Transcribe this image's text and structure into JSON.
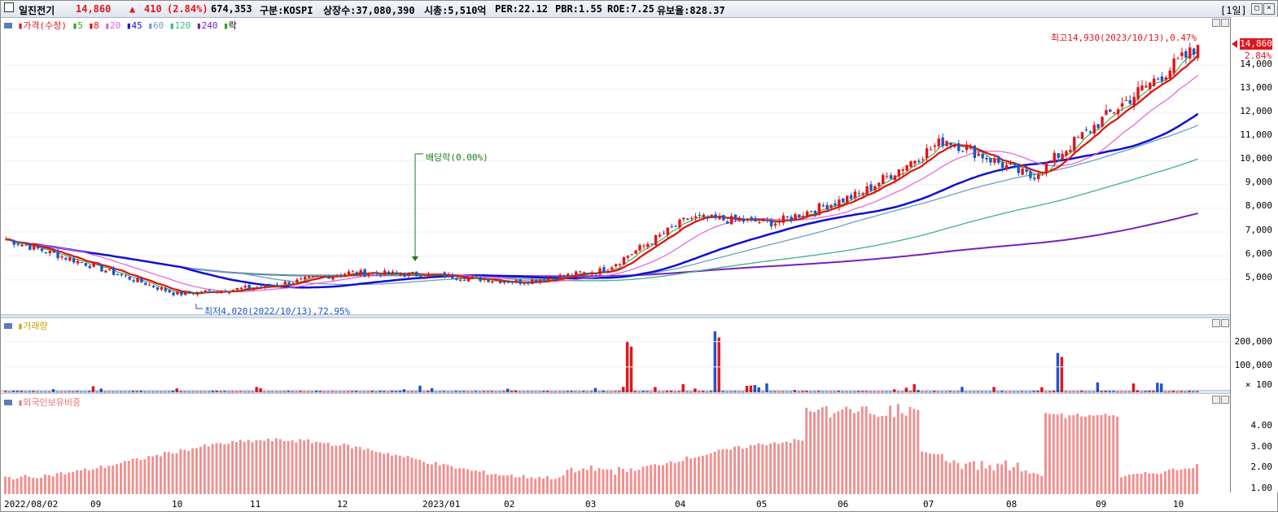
{
  "header": {
    "stock_name": "일진전기",
    "price": "14,860",
    "change_arrow": "▲",
    "change": "410",
    "change_pct": "(2.84%)",
    "volume": "674,353",
    "market": "구분:KOSPI",
    "shares": "상장수:37,080,390",
    "mcap": "시총:5,510억",
    "per": "PER:22.12",
    "pbr": "PBR:1.55",
    "roe": "ROE:7.25",
    "retention": "유보율:828.37",
    "period_button": "[1일]"
  },
  "legend_price": {
    "label": "가격(수정)",
    "ma": [
      "5",
      "8",
      "20",
      "45",
      "60",
      "120",
      "240"
    ],
    "ex_div": "락"
  },
  "annotations": {
    "high": "최고14,930(2023/10/13),0.47%",
    "low": "최저4,020(2022/10/13),72.95%",
    "dividend": "배당락(0.00%)",
    "last_price": "14,860",
    "last_pct": "2.84%"
  },
  "price_axis": [
    "14,000",
    "13,000",
    "12,000",
    "11,000",
    "10,000",
    "9,000",
    "8,000",
    "7,000",
    "6,000",
    "5,000"
  ],
  "volume_panel": {
    "label": "거래량",
    "ticks": [
      "200,000",
      "100,000"
    ],
    "unit": "× 100"
  },
  "foreign_panel": {
    "label": "외국인보유비중",
    "ticks": [
      "4.00",
      "3.00",
      "2.00",
      "1.00"
    ]
  },
  "x_labels": [
    "2022/08/02",
    "09",
    "10",
    "11",
    "12",
    "2023/01",
    "02",
    "03",
    "04",
    "05",
    "06",
    "07",
    "08",
    "09",
    "10"
  ],
  "colors": {
    "up": "#e0161c",
    "down": "#1f54c8",
    "ma5": "#2ba52b",
    "ma8": "#e01010",
    "ma20": "#e060e0",
    "ma45": "#1010d0",
    "ma60": "#6aa0c8",
    "ma120": "#3cb38a",
    "ma240": "#7a20b8",
    "foreign": "#f09090"
  },
  "chart_data": {
    "type": "candlestick",
    "y_range": [
      4000,
      15000
    ],
    "monthly_close_approx": [
      {
        "month": "2022/08",
        "value": 6700
      },
      {
        "month": "2022/09",
        "value": 5600
      },
      {
        "month": "2022/10",
        "value": 4400
      },
      {
        "month": "2022/11",
        "value": 4700
      },
      {
        "month": "2022/12",
        "value": 5300
      },
      {
        "month": "2023/01",
        "value": 5200
      },
      {
        "month": "2023/02",
        "value": 4900
      },
      {
        "month": "2023/03",
        "value": 5400
      },
      {
        "month": "2023/04",
        "value": 7600
      },
      {
        "month": "2023/05",
        "value": 7400
      },
      {
        "month": "2023/06",
        "value": 8600
      },
      {
        "month": "2023/07",
        "value": 10900
      },
      {
        "month": "2023/08",
        "value": 9300
      },
      {
        "month": "2023/09",
        "value": 12200
      },
      {
        "month": "2023/10",
        "value": 14860
      }
    ],
    "volume_peaks_x100": [
      {
        "month": "2023/03",
        "value": 200000
      },
      {
        "month": "2023/04",
        "value": 240000
      },
      {
        "month": "2023/08",
        "value": 155000
      }
    ],
    "foreign_ratio_range": [
      1.0,
      4.9
    ]
  }
}
